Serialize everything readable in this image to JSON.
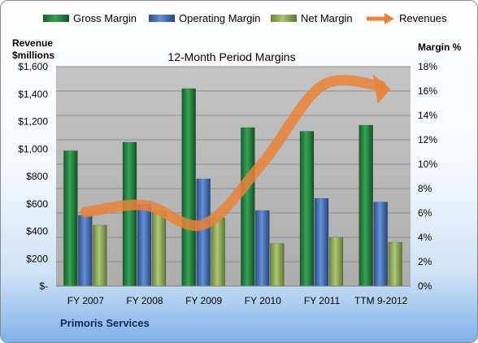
{
  "chart_data": {
    "type": "bar",
    "title": "12-Month Period Margins",
    "categories": [
      "FY 2007",
      "FY 2008",
      "FY 2009",
      "FY 2010",
      "FY 2011",
      "TTM 9-2012"
    ],
    "series": [
      {
        "name": "Gross Margin",
        "axis": "right",
        "values": [
          11.1,
          11.8,
          16.2,
          13.0,
          12.7,
          13.2
        ],
        "color": "#2e8b46"
      },
      {
        "name": "Operating Margin",
        "axis": "right",
        "values": [
          5.8,
          6.7,
          8.8,
          6.2,
          7.2,
          6.9
        ],
        "color": "#4a72b8"
      },
      {
        "name": "Net Margin",
        "axis": "right",
        "values": [
          5.0,
          6.2,
          5.6,
          3.5,
          4.0,
          3.6
        ],
        "color": "#93ad5a"
      },
      {
        "name": "Revenues",
        "type": "line",
        "axis": "left",
        "values": [
          540,
          590,
          450,
          900,
          1460,
          1460
        ],
        "color": "#e8833a"
      }
    ],
    "y_left": {
      "label_line1": "Revenue",
      "label_line2": "$millions",
      "range": [
        0,
        1600
      ],
      "ticks": [
        "$-",
        "$200",
        "$400",
        "$600",
        "$800",
        "$1,000",
        "$1,200",
        "$1,400",
        "$1,600"
      ]
    },
    "y_right": {
      "label": "Margin %",
      "range": [
        0,
        18
      ],
      "ticks": [
        "0%",
        "2%",
        "4%",
        "6%",
        "8%",
        "10%",
        "12%",
        "14%",
        "16%",
        "18%"
      ]
    },
    "legend_position": "top",
    "grid": true
  },
  "footer_text": "Primoris Services"
}
